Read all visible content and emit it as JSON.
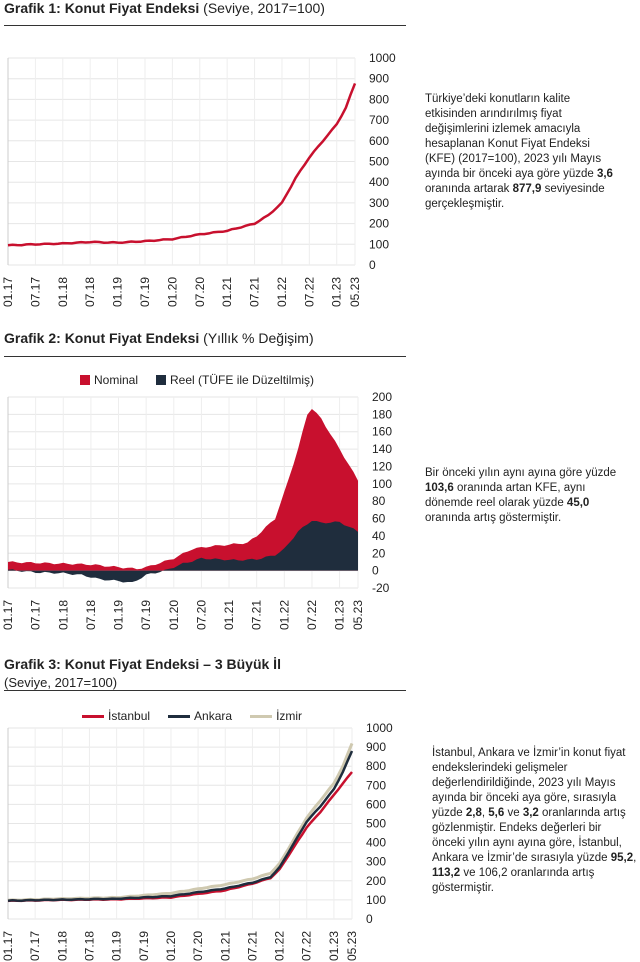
{
  "charts": [
    {
      "title_bold": "Grafik 1: Konut Fiyat Endeksi",
      "title_rest": " (Seviye, 2017=100)",
      "title_line2": "",
      "note": {
        "p1": "Türkiye’deki konutların kalite etkisinden arındırılmış fiyat değişimlerini izlemek amacıyla hesaplanan Konut Fiyat Endeksi (KFE) (2017=100), 2023 yılı Mayıs ayında bir önceki aya göre yüzde ",
        "b1": "3,6",
        "p2": " oranında artarak ",
        "b2": "877,9",
        "p3": " seviyesinde gerçekleşmiştir.",
        "b3": "",
        "p4": "",
        "b4": "",
        "p5": "",
        "b5": "",
        "p6": ""
      }
    },
    {
      "title_bold": "Grafik 2: Konut Fiyat Endeksi",
      "title_rest": " (Yıllık % Değişim)",
      "title_line2": "",
      "note": {
        "p1": "Bir önceki yılın aynı ayına göre yüzde ",
        "b1": "103,6",
        "p2": " oranında artan KFE, aynı dönemde reel olarak yüzde ",
        "b2": "45,0",
        "p3": " oranında artış göstermiştir.",
        "b3": "",
        "p4": "",
        "b4": "",
        "p5": "",
        "b5": "",
        "p6": ""
      }
    },
    {
      "title_bold": "Grafik 3: Konut Fiyat Endeksi – 3 Büyük İl",
      "title_rest": "",
      "title_line2": "(Seviye, 2017=100)",
      "note": {
        "p1": "İstanbul, Ankara ve İzmir’in konut fiyat endekslerindeki gelişmeler değerlendirildiğinde, 2023 yılı Mayıs ayında bir önceki aya göre, sırasıyla yüzde ",
        "b1": "2,8",
        "p2": ", ",
        "b2": "5,6",
        "p3": " ve ",
        "b3": "3,2",
        "p4": " oranlarında artış gözlenmiştir. Endeks değerleri bir önceki yılın aynı ayına göre, İstanbul, Ankara ve İzmir’de sırasıyla yüzde ",
        "b4": "95,2",
        "p5": ", ",
        "b5": "113,2",
        "p6": " ve 106,2 oranlarında artış göstermiştir."
      }
    }
  ],
  "chart_data": [
    {
      "type": "line",
      "x_ticks": [
        "01.17",
        "07.17",
        "01.18",
        "07.18",
        "01.19",
        "07.19",
        "01.20",
        "07.20",
        "01.21",
        "07.21",
        "01.22",
        "07.22",
        "01.23",
        "05.23"
      ],
      "x_tick_months": [
        0,
        6,
        12,
        18,
        24,
        30,
        36,
        42,
        48,
        54,
        60,
        66,
        72,
        76
      ],
      "ylim": [
        0,
        1000
      ],
      "y_ticks": [
        0,
        100,
        200,
        300,
        400,
        500,
        600,
        700,
        800,
        900,
        1000
      ],
      "grid": true,
      "colors": {
        "line": "#c8102e"
      },
      "series": [
        {
          "name": "",
          "keypoints": [
            [
              0,
              95
            ],
            [
              6,
              100
            ],
            [
              12,
              104
            ],
            [
              18,
              111
            ],
            [
              24,
              108
            ],
            [
              30,
              115
            ],
            [
              36,
              125
            ],
            [
              42,
              148
            ],
            [
              48,
              165
            ],
            [
              54,
              200
            ],
            [
              57,
              240
            ],
            [
              60,
              300
            ],
            [
              63,
              420
            ],
            [
              66,
              520
            ],
            [
              69,
              600
            ],
            [
              72,
              680
            ],
            [
              74,
              760
            ],
            [
              76,
              878
            ]
          ]
        }
      ]
    },
    {
      "type": "area",
      "x_ticks": [
        "01.17",
        "07.17",
        "01.18",
        "07.18",
        "01.19",
        "07.19",
        "01.20",
        "07.20",
        "01.21",
        "07.21",
        "01.22",
        "07.22",
        "01.23",
        "05.23"
      ],
      "x_tick_months": [
        0,
        6,
        12,
        18,
        24,
        30,
        36,
        42,
        48,
        54,
        60,
        66,
        72,
        76
      ],
      "ylim": [
        -20,
        200
      ],
      "y_ticks": [
        -20,
        0,
        20,
        40,
        60,
        80,
        100,
        120,
        140,
        160,
        180,
        200
      ],
      "grid": true,
      "legend": "top",
      "colors": {
        "nominal": "#c8102e",
        "reel": "#1f2d3d"
      },
      "series": [
        {
          "name": "Nominal",
          "keypoints": [
            [
              0,
              10
            ],
            [
              6,
              9
            ],
            [
              12,
              8
            ],
            [
              18,
              7
            ],
            [
              24,
              4
            ],
            [
              28,
              2
            ],
            [
              30,
              4
            ],
            [
              36,
              14
            ],
            [
              40,
              25
            ],
            [
              44,
              28
            ],
            [
              48,
              30
            ],
            [
              52,
              32
            ],
            [
              54,
              40
            ],
            [
              58,
              60
            ],
            [
              60,
              90
            ],
            [
              63,
              140
            ],
            [
              65,
              180
            ],
            [
              66,
              187
            ],
            [
              68,
              175
            ],
            [
              72,
              140
            ],
            [
              76,
              104
            ]
          ]
        },
        {
          "name": "Reel (TÜFE ile Düzeltilmiş)",
          "keypoints": [
            [
              0,
              1
            ],
            [
              6,
              -2
            ],
            [
              12,
              -3
            ],
            [
              16,
              -5
            ],
            [
              20,
              -10
            ],
            [
              24,
              -12
            ],
            [
              27,
              -14
            ],
            [
              30,
              -5
            ],
            [
              34,
              0
            ],
            [
              38,
              8
            ],
            [
              42,
              14
            ],
            [
              46,
              13
            ],
            [
              50,
              12
            ],
            [
              54,
              13
            ],
            [
              58,
              18
            ],
            [
              60,
              25
            ],
            [
              63,
              45
            ],
            [
              66,
              58
            ],
            [
              68,
              55
            ],
            [
              72,
              56
            ],
            [
              76,
              45
            ]
          ]
        }
      ]
    },
    {
      "type": "line",
      "x_ticks": [
        "01.17",
        "07.17",
        "01.18",
        "07.18",
        "01.19",
        "07.19",
        "01.20",
        "07.20",
        "01.21",
        "07.21",
        "01.22",
        "07.22",
        "01.23",
        "05.23"
      ],
      "x_tick_months": [
        0,
        6,
        12,
        18,
        24,
        30,
        36,
        42,
        48,
        54,
        60,
        66,
        72,
        76
      ],
      "ylim": [
        0,
        1000
      ],
      "y_ticks": [
        0,
        100,
        200,
        300,
        400,
        500,
        600,
        700,
        800,
        900,
        1000
      ],
      "grid": true,
      "legend": "top",
      "colors": {
        "istanbul": "#c8102e",
        "ankara": "#1f2d3d",
        "izmir": "#cfc9b0"
      },
      "series": [
        {
          "name": "İstanbul",
          "color": "#c8102e",
          "keypoints": [
            [
              0,
              95
            ],
            [
              12,
              100
            ],
            [
              24,
              103
            ],
            [
              36,
              113
            ],
            [
              48,
              150
            ],
            [
              54,
              185
            ],
            [
              58,
              215
            ],
            [
              60,
              260
            ],
            [
              63,
              370
            ],
            [
              66,
              480
            ],
            [
              69,
              560
            ],
            [
              72,
              650
            ],
            [
              74,
              710
            ],
            [
              76,
              770
            ]
          ]
        },
        {
          "name": "Ankara",
          "color": "#1f2d3d",
          "keypoints": [
            [
              0,
              96
            ],
            [
              12,
              101
            ],
            [
              24,
              106
            ],
            [
              36,
              120
            ],
            [
              48,
              160
            ],
            [
              54,
              190
            ],
            [
              58,
              220
            ],
            [
              60,
              270
            ],
            [
              63,
              390
            ],
            [
              66,
              510
            ],
            [
              69,
              590
            ],
            [
              72,
              680
            ],
            [
              74,
              770
            ],
            [
              76,
              880
            ]
          ]
        },
        {
          "name": "İzmir",
          "color": "#cfc9b0",
          "keypoints": [
            [
              0,
              98
            ],
            [
              12,
              106
            ],
            [
              24,
              112
            ],
            [
              36,
              135
            ],
            [
              48,
              180
            ],
            [
              54,
              210
            ],
            [
              58,
              240
            ],
            [
              60,
              290
            ],
            [
              63,
              410
            ],
            [
              66,
              530
            ],
            [
              69,
              620
            ],
            [
              72,
              710
            ],
            [
              74,
              800
            ],
            [
              76,
              920
            ]
          ]
        }
      ]
    }
  ]
}
